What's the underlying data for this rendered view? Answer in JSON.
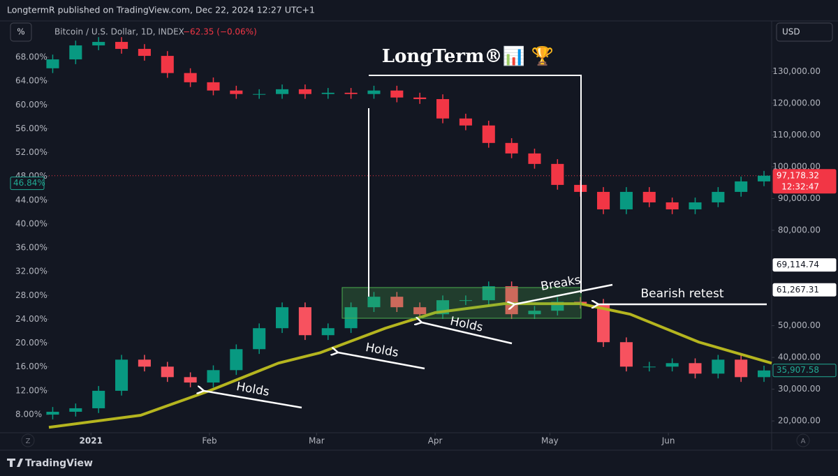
{
  "header": {
    "publisher": "LongtermR published on TradingView.com, Dec 22, 2024 12:27 UTC+1",
    "footer": "TradingView"
  },
  "chart_data": {
    "type": "candlestick",
    "symbol": "Bitcoin / U.S. Dollar, 1D, INDEX",
    "change": "−62.35 (−0.06%)",
    "left_unit": "%",
    "right_unit": "USD",
    "title": "LongTerm®📊 🏆",
    "annotations": [
      "Holds",
      "Holds",
      "Holds",
      "Breaks",
      "Bearish retest"
    ],
    "scale_buttons": [
      "Z",
      "A"
    ],
    "x": [
      -10,
      -4,
      2,
      8,
      14,
      20,
      26,
      32,
      38,
      44,
      50,
      56,
      62,
      68,
      74,
      80,
      86,
      92,
      98,
      104,
      110,
      116,
      122,
      128,
      134,
      140,
      146,
      152,
      158,
      164,
      170,
      176
    ],
    "xlim": [
      -11,
      178
    ],
    "xticks": [
      {
        "value": 0,
        "label": "2021"
      },
      {
        "value": 31,
        "label": "Feb"
      },
      {
        "value": 59,
        "label": "Mar"
      },
      {
        "value": 90,
        "label": "Apr"
      },
      {
        "value": 120,
        "label": "May"
      },
      {
        "value": 151,
        "label": "Jun"
      }
    ],
    "ylim": [
      4.95,
      74.1
    ],
    "yticks": [
      {
        "value": 8,
        "label": "8.00%"
      },
      {
        "value": 12,
        "label": "12.00%"
      },
      {
        "value": 16,
        "label": "16.00%"
      },
      {
        "value": 20,
        "label": "20.00%"
      },
      {
        "value": 24,
        "label": "24.00%"
      },
      {
        "value": 28,
        "label": "28.00%"
      },
      {
        "value": 32,
        "label": "32.00%"
      },
      {
        "value": 36,
        "label": "36.00%"
      },
      {
        "value": 40,
        "label": "40.00%"
      },
      {
        "value": 44,
        "label": "44.00%"
      },
      {
        "value": 48,
        "label": "48.00%"
      },
      {
        "value": 52,
        "label": "52.00%"
      },
      {
        "value": 56,
        "label": "56.00%"
      },
      {
        "value": 60,
        "label": "60.00%"
      },
      {
        "value": 64,
        "label": "64.00%"
      },
      {
        "value": 68,
        "label": "68.00%"
      }
    ],
    "y2lim": [
      16300,
      145900
    ],
    "y2ticks": [
      {
        "value": 20000,
        "label": "20,000.00"
      },
      {
        "value": 30000,
        "label": "30,000.00"
      },
      {
        "value": 40000,
        "label": "40,000.00"
      },
      {
        "value": 50000,
        "label": "50,000.00"
      },
      {
        "value": 80000,
        "label": "80,000.00"
      },
      {
        "value": 90000,
        "label": "90,000.00"
      },
      {
        "value": 100000,
        "label": "100,000.00"
      },
      {
        "value": 110000,
        "label": "110,000.00"
      },
      {
        "value": 120000,
        "label": "120,000.00"
      },
      {
        "value": 130000,
        "label": "130,000.00"
      }
    ],
    "series": [
      {
        "axis": "y2",
        "up_color": "#089981",
        "down_color": "#f23645",
        "open": [
          131000,
          133800,
          138200,
          139300,
          137100,
          134900,
          129500,
          126600,
          124000,
          122900,
          122900,
          124400,
          122900,
          123300,
          122900,
          124000,
          121800,
          121300,
          115200,
          113000,
          107500,
          104200,
          100900,
          94300,
          92100,
          86600,
          92100,
          88800,
          86600,
          88800,
          92100,
          95400
        ],
        "high": [
          135300,
          139700,
          140800,
          140800,
          138600,
          136400,
          131000,
          128100,
          125500,
          124400,
          125900,
          125900,
          124800,
          124800,
          125500,
          125500,
          123300,
          122800,
          116700,
          114500,
          109000,
          105700,
          102400,
          95800,
          93600,
          93600,
          93600,
          90300,
          90300,
          93600,
          96900,
          98700
        ],
        "low": [
          129500,
          132300,
          136700,
          135600,
          133400,
          128000,
          125100,
          122500,
          121400,
          121400,
          121400,
          121400,
          121400,
          121400,
          121400,
          120300,
          119800,
          113700,
          111500,
          106000,
          102700,
          99400,
          92800,
          90600,
          85100,
          85100,
          87300,
          85100,
          85100,
          87300,
          90600,
          93900
        ],
        "close": [
          133800,
          138200,
          139300,
          137100,
          134900,
          129500,
          126600,
          124000,
          122900,
          122900,
          124400,
          122900,
          123300,
          122900,
          124000,
          121800,
          121300,
          115200,
          113000,
          107500,
          104200,
          100900,
          94300,
          92100,
          86600,
          92100,
          88800,
          86600,
          88800,
          92100,
          95400,
          97200
        ]
      },
      {
        "axis": "y2",
        "up_color": "#089981",
        "down_color": "#f7525f",
        "open": [
          22000,
          22900,
          24000,
          29500,
          39300,
          37100,
          33800,
          32100,
          36000,
          42600,
          49200,
          55800,
          47000,
          49200,
          55800,
          59100,
          55800,
          53600,
          58000,
          58000,
          62400,
          53600,
          54700,
          57500,
          56900,
          44800,
          37100,
          37100,
          38200,
          34900,
          39300,
          33800
        ],
        "high": [
          24400,
          25500,
          31000,
          40800,
          40800,
          38600,
          35300,
          37500,
          44100,
          50700,
          57300,
          57300,
          50700,
          57300,
          60600,
          60600,
          57300,
          59500,
          59500,
          63900,
          63900,
          56200,
          59000,
          59000,
          58400,
          46300,
          38600,
          39700,
          39700,
          40800,
          40800,
          37400
        ],
        "low": [
          20500,
          21400,
          22500,
          28000,
          35600,
          32300,
          30600,
          30600,
          34500,
          41100,
          47700,
          45500,
          45500,
          47700,
          54300,
          54300,
          52100,
          52100,
          56500,
          56500,
          52100,
          52100,
          53200,
          55400,
          43300,
          35600,
          35600,
          35600,
          33400,
          33400,
          32300,
          32300
        ],
        "close": [
          22900,
          24000,
          29500,
          39300,
          37100,
          33800,
          32100,
          36000,
          42600,
          49200,
          55800,
          47000,
          49200,
          55800,
          59100,
          55800,
          53600,
          58000,
          58000,
          62400,
          53600,
          54700,
          57500,
          56900,
          44800,
          37100,
          37100,
          38200,
          34900,
          39300,
          33800,
          35900
        ]
      }
    ],
    "moving_average": {
      "axis": "y2",
      "color": "#b5b51f",
      "x": [
        -11,
        13,
        31,
        49,
        60,
        77,
        90,
        108,
        128,
        141,
        159,
        178
      ],
      "values": [
        18000,
        21800,
        29500,
        38200,
        41500,
        49200,
        54100,
        56900,
        56900,
        53600,
        44800,
        38200
      ]
    },
    "price_labels": [
      {
        "value": 97178.32,
        "label": "97,178.32",
        "time": "12:32:47",
        "background": "#f23645",
        "text_color": "#ffffff"
      },
      {
        "value": 69114.74,
        "label": "69,114.74",
        "background": "#ffffff",
        "text_color": "#131722"
      },
      {
        "value": 61267.31,
        "label": "61,267.31",
        "background": "#ffffff",
        "text_color": "#131722"
      },
      {
        "value": 35907.58,
        "label": "35,907.58",
        "background": "#131722",
        "text_color": "#22ab94"
      }
    ],
    "left_price_label": {
      "value": 46.84,
      "label": "46.84%",
      "text_color": "#22ab94"
    }
  }
}
